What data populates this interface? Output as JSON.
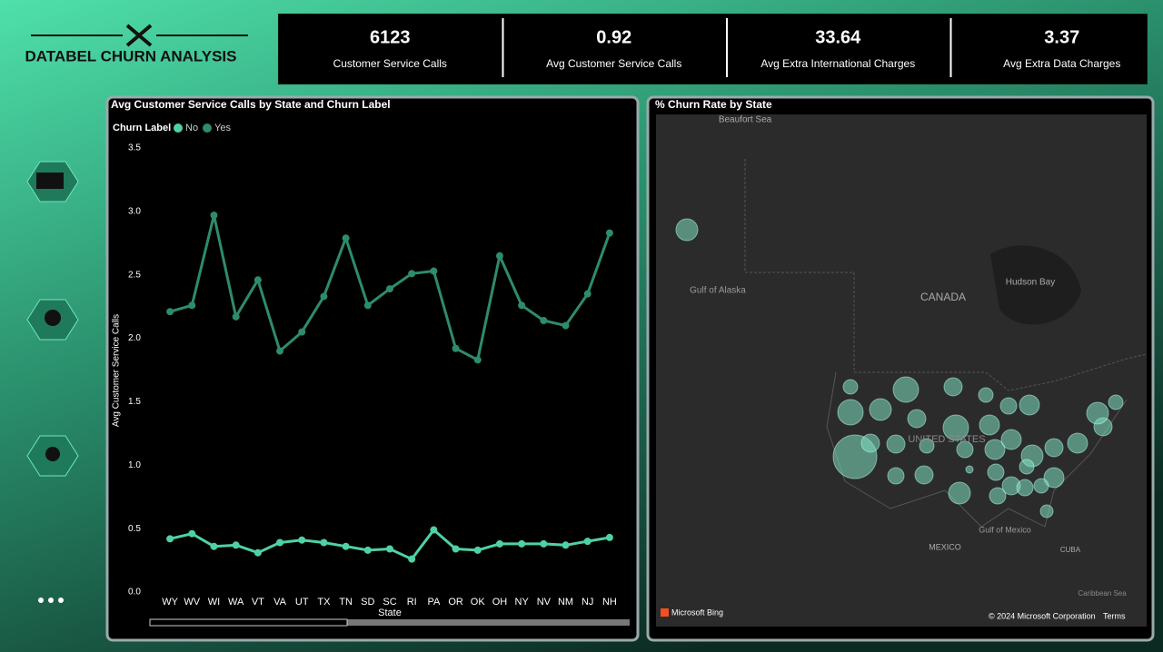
{
  "header": {
    "title": "DATABEL CHURN ANALYSIS"
  },
  "kpis": [
    {
      "value": 6123,
      "label": "Customer Service Calls"
    },
    {
      "value": 0.92,
      "label": "Avg Customer Service Calls"
    },
    {
      "value": 33.64,
      "label": "Avg Extra International Charges"
    },
    {
      "value": 3.37,
      "label": "Avg Extra Data Charges"
    }
  ],
  "chart_data": {
    "type": "line",
    "title": "Avg Customer Service Calls by State and Churn Label",
    "x_label": "State",
    "y_label": "Avg Customer Service Calls",
    "legend_title": "Churn Label",
    "categories": [
      "WY",
      "WV",
      "WI",
      "WA",
      "VT",
      "VA",
      "UT",
      "TX",
      "TN",
      "SD",
      "SC",
      "RI",
      "PA",
      "OR",
      "OK",
      "OH",
      "NY",
      "NV",
      "NM",
      "NJ",
      "NH"
    ],
    "series": [
      {
        "name": "No",
        "color": "#4fd1a5",
        "values": [
          0.42,
          0.46,
          0.36,
          0.37,
          0.31,
          0.39,
          0.41,
          0.39,
          0.36,
          0.33,
          0.34,
          0.26,
          0.49,
          0.34,
          0.33,
          0.38,
          0.38,
          0.38,
          0.37,
          0.4,
          0.43
        ]
      },
      {
        "name": "Yes",
        "color": "#2e8b6e",
        "values": [
          2.21,
          2.26,
          2.97,
          2.17,
          2.46,
          1.9,
          2.05,
          2.33,
          2.79,
          2.26,
          2.39,
          2.51,
          2.53,
          1.92,
          1.83,
          2.65,
          2.26,
          2.14,
          2.1,
          2.35,
          2.83
        ]
      }
    ],
    "ylim": [
      0,
      3.5
    ],
    "yticks": [
      {
        "value": 0,
        "label": "0.0"
      },
      0.5,
      {
        "value": 1,
        "label": "1.0"
      },
      1.5,
      {
        "value": 2,
        "label": "2.0"
      },
      2.5,
      {
        "value": 3,
        "label": "3.0"
      },
      3.5
    ],
    "grid": false
  },
  "map": {
    "title": "% Churn Rate by State",
    "labels": [
      "Beaufort Sea",
      "Gulf of Alaska",
      "CANADA",
      "Hudson Bay",
      "UNITED STATES",
      "Gulf of Mexico",
      "MEXICO",
      "CUBA",
      "Caribbean Sea",
      "Microsoft Bing",
      "© 2024 Microsoft Corporation",
      "Terms"
    ]
  }
}
